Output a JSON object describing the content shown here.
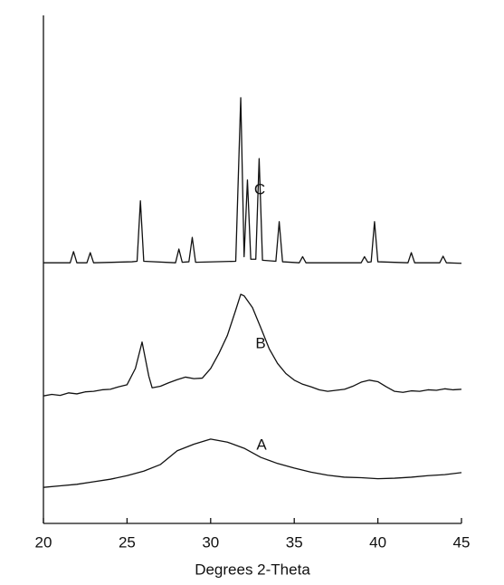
{
  "chart_data": {
    "type": "line",
    "xlabel": "Degrees 2-Theta",
    "xlim": [
      20,
      45
    ],
    "xticks": [
      20,
      25,
      30,
      35,
      40,
      45
    ],
    "ylim": [
      0,
      100
    ],
    "series": [
      {
        "name": "A",
        "color": "#111111",
        "x": [
          20,
          21,
          22,
          23,
          24,
          25,
          26,
          27,
          28,
          29,
          30,
          31,
          32,
          33,
          34,
          35,
          36,
          37,
          38,
          39,
          40,
          41,
          42,
          43,
          44,
          45
        ],
        "values": [
          7.1,
          7.4,
          7.7,
          8.2,
          8.7,
          9.4,
          10.3,
          11.6,
          14.3,
          15.6,
          16.6,
          16.0,
          14.8,
          13,
          11.8,
          10.9,
          10.1,
          9.5,
          9.1,
          9.0,
          8.8,
          8.9,
          9.1,
          9.4,
          9.6,
          10
        ]
      },
      {
        "name": "B",
        "color": "#111111",
        "x": [
          20,
          20.5,
          21,
          21.5,
          22,
          22.5,
          23,
          23.5,
          24,
          24.5,
          25,
          25.5,
          25.9,
          26.3,
          26.5,
          27,
          27.5,
          28,
          28.5,
          29,
          29.5,
          30,
          30.5,
          31,
          31.5,
          31.8,
          32,
          32.5,
          33,
          33.5,
          34,
          34.5,
          35,
          35.5,
          36,
          36.5,
          37,
          37.5,
          38,
          38.5,
          39,
          39.5,
          40,
          40.5,
          41,
          41.5,
          42,
          42.5,
          43,
          43.5,
          44,
          44.5,
          45
        ],
        "values": [
          25.1,
          25.4,
          25.2,
          25.7,
          25.5,
          25.9,
          26.0,
          26.3,
          26.4,
          26.9,
          27.3,
          30.5,
          35.7,
          29,
          26.7,
          27,
          27.7,
          28.3,
          28.8,
          28.5,
          28.6,
          30.5,
          33.5,
          37,
          42,
          45.1,
          44.8,
          42.5,
          38.5,
          34.4,
          31.5,
          29.5,
          28.2,
          27.4,
          26.9,
          26.3,
          26,
          26.2,
          26.4,
          27,
          27.8,
          28.2,
          27.9,
          26.9,
          26,
          25.8,
          26.1,
          26,
          26.3,
          26.2,
          26.5,
          26.3,
          26.4
        ]
      },
      {
        "name": "C",
        "color": "#111111",
        "x": [
          20,
          21.6,
          21.8,
          22.0,
          22.6,
          22.8,
          23.0,
          25.3,
          25.6,
          25.8,
          26.0,
          27.9,
          28.1,
          28.3,
          28.7,
          28.9,
          29.1,
          31.5,
          31.8,
          32.0,
          32.2,
          32.4,
          32.7,
          32.9,
          33.1,
          33.9,
          34.1,
          34.3,
          35.3,
          35.5,
          35.7,
          39.0,
          39.2,
          39.4,
          39.6,
          39.8,
          40.0,
          41.8,
          42.0,
          42.2,
          43.7,
          43.9,
          44.1,
          45
        ],
        "values": [
          51.3,
          51.3,
          53.5,
          51.3,
          51.3,
          53.3,
          51.3,
          51.5,
          51.6,
          63.5,
          51.6,
          51.3,
          54,
          51.4,
          51.5,
          56.3,
          51.4,
          51.6,
          83.8,
          52.5,
          67.6,
          52,
          52,
          71.8,
          51.8,
          51.6,
          59.4,
          51.5,
          51.3,
          52.5,
          51.3,
          51.3,
          52.5,
          51.4,
          51.5,
          59.4,
          51.5,
          51.3,
          53.3,
          51.3,
          51.3,
          52.6,
          51.3,
          51.2
        ]
      }
    ]
  }
}
